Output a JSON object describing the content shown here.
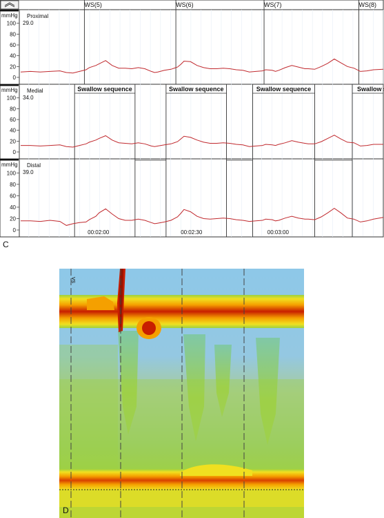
{
  "panel_c_letter": "C",
  "panel_d_letter": "D",
  "chart_data": [
    {
      "type": "line",
      "panel": "C",
      "channels": [
        {
          "name": "Proximal",
          "baseline": "29.0"
        },
        {
          "name": "Medial",
          "baseline": "34.0"
        },
        {
          "name": "Distal",
          "baseline": "39.0"
        }
      ],
      "ylabel": "mmHg",
      "yticks": [
        0,
        20,
        40,
        60,
        80,
        100
      ],
      "ylim": [
        0,
        115
      ],
      "wet_swallow_markers": [
        {
          "label": "WS(5)",
          "t": 106.5
        },
        {
          "label": "WS(6)",
          "t": 134.5
        },
        {
          "label": "WS(7)",
          "t": 161.5
        },
        {
          "label": "WS(8)",
          "t": 190.5
        }
      ],
      "swallow_sequence_label": "Swallow sequence",
      "swallow_sequences": [
        {
          "start": 103.5,
          "end": 122.0,
          "label_visible": "Swallow sequence"
        },
        {
          "start": 131.5,
          "end": 150.0,
          "label_visible": "Swallow sequence"
        },
        {
          "start": 158.0,
          "end": 177.0,
          "label_visible": "Swallow sequence"
        },
        {
          "start": 188.5,
          "end": 200.0,
          "label_visible": "Swallow s"
        }
      ],
      "time_labels": [
        {
          "label": "00:02:00",
          "t": 107.5
        },
        {
          "label": "00:02:30",
          "t": 136.0
        },
        {
          "label": "00:03:00",
          "t": 162.5
        }
      ],
      "xlim": [
        87,
        198
      ],
      "series": [
        {
          "name": "Proximal",
          "t": [
            87,
            90,
            93,
            96,
            99,
            101,
            103,
            105,
            107,
            108,
            110,
            111,
            113,
            115,
            117,
            119,
            121,
            123,
            125,
            127,
            128,
            129,
            131,
            133,
            135,
            136,
            137,
            139,
            141,
            143,
            145,
            147,
            149,
            151,
            153,
            155,
            157,
            159,
            161,
            162,
            164,
            165,
            166,
            168,
            170,
            172,
            174,
            175,
            177,
            179,
            181,
            183,
            185,
            187,
            189,
            191,
            193,
            195,
            198
          ],
          "v": [
            10,
            11,
            10,
            11,
            12,
            9,
            8,
            11,
            14,
            18,
            22,
            25,
            31,
            22,
            17,
            17,
            16,
            18,
            16,
            11,
            9,
            10,
            13,
            15,
            19,
            24,
            30,
            29,
            22,
            18,
            16,
            16,
            17,
            16,
            14,
            13,
            10,
            11,
            12,
            14,
            13,
            11,
            13,
            18,
            22,
            19,
            16,
            16,
            15,
            20,
            26,
            34,
            27,
            20,
            17,
            11,
            12,
            14,
            15
          ]
        },
        {
          "name": "Medial",
          "t": [
            87,
            90,
            93,
            96,
            99,
            101,
            103,
            105,
            107,
            108,
            110,
            111,
            113,
            115,
            117,
            119,
            121,
            123,
            125,
            127,
            128,
            129,
            131,
            133,
            135,
            136,
            137,
            139,
            141,
            143,
            145,
            147,
            149,
            151,
            153,
            155,
            157,
            159,
            161,
            162,
            164,
            165,
            166,
            168,
            170,
            172,
            174,
            175,
            177,
            179,
            181,
            183,
            185,
            187,
            189,
            191,
            193,
            195,
            198
          ],
          "v": [
            12,
            12,
            11,
            12,
            13,
            10,
            9,
            12,
            15,
            18,
            22,
            25,
            30,
            22,
            17,
            16,
            15,
            17,
            15,
            11,
            10,
            11,
            13,
            15,
            19,
            24,
            29,
            27,
            22,
            18,
            16,
            16,
            17,
            16,
            14,
            13,
            10,
            11,
            12,
            14,
            13,
            12,
            14,
            17,
            21,
            18,
            16,
            15,
            15,
            19,
            25,
            31,
            24,
            18,
            17,
            11,
            12,
            14,
            14
          ]
        },
        {
          "name": "Distal",
          "t": [
            87,
            90,
            93,
            96,
            99,
            101,
            103,
            105,
            107,
            108,
            110,
            111,
            113,
            115,
            117,
            119,
            121,
            123,
            125,
            127,
            128,
            129,
            131,
            133,
            135,
            136,
            137,
            139,
            141,
            143,
            145,
            147,
            149,
            151,
            153,
            155,
            157,
            159,
            161,
            162,
            164,
            165,
            166,
            168,
            170,
            172,
            174,
            175,
            177,
            179,
            181,
            183,
            185,
            187,
            189,
            191,
            193,
            195,
            198
          ],
          "v": [
            16,
            16,
            15,
            17,
            15,
            8,
            11,
            13,
            14,
            18,
            24,
            30,
            37,
            28,
            20,
            17,
            17,
            19,
            17,
            13,
            11,
            12,
            14,
            17,
            23,
            29,
            36,
            32,
            24,
            20,
            19,
            20,
            21,
            20,
            18,
            17,
            15,
            16,
            17,
            19,
            18,
            16,
            17,
            21,
            24,
            21,
            19,
            19,
            18,
            23,
            30,
            38,
            30,
            21,
            19,
            14,
            16,
            19,
            22
          ]
        }
      ]
    },
    {
      "type": "heatmap",
      "panel": "D",
      "annotation": "vs",
      "colorscale": [
        "#8ec8e8",
        "#7ec8a0",
        "#9ed040",
        "#f0e020",
        "#f5a000",
        "#e05000",
        "#c81e00",
        "#961400"
      ]
    }
  ]
}
